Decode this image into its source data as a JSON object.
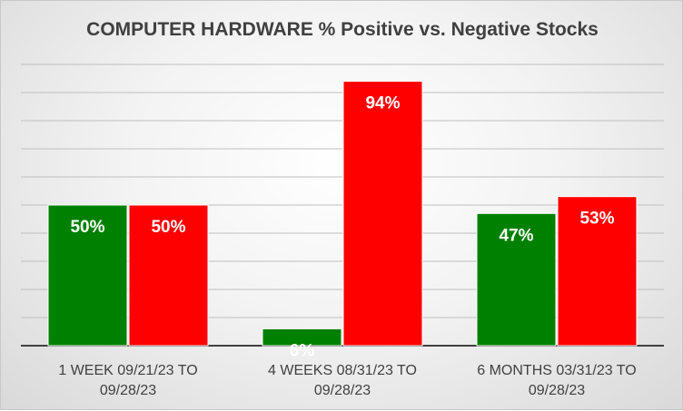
{
  "chart_data": {
    "type": "bar",
    "title": "COMPUTER HARDWARE % Positive vs. Negative Stocks",
    "categories": [
      [
        "1 WEEK 09/21/23 TO",
        "09/28/23"
      ],
      [
        "4 WEEKS 08/31/23 TO",
        "09/28/23"
      ],
      [
        "6 MONTHS 03/31/23 TO",
        "09/28/23"
      ]
    ],
    "series": [
      {
        "values": [
          50,
          6,
          47
        ],
        "labels": [
          "50%",
          "6%",
          "47%"
        ],
        "color": "#008000"
      },
      {
        "values": [
          50,
          94,
          53
        ],
        "labels": [
          "50%",
          "94%",
          "53%"
        ],
        "color": "#ff0000"
      }
    ],
    "ylim": [
      0,
      100
    ],
    "grid": true,
    "xlabel": "",
    "ylabel": ""
  }
}
